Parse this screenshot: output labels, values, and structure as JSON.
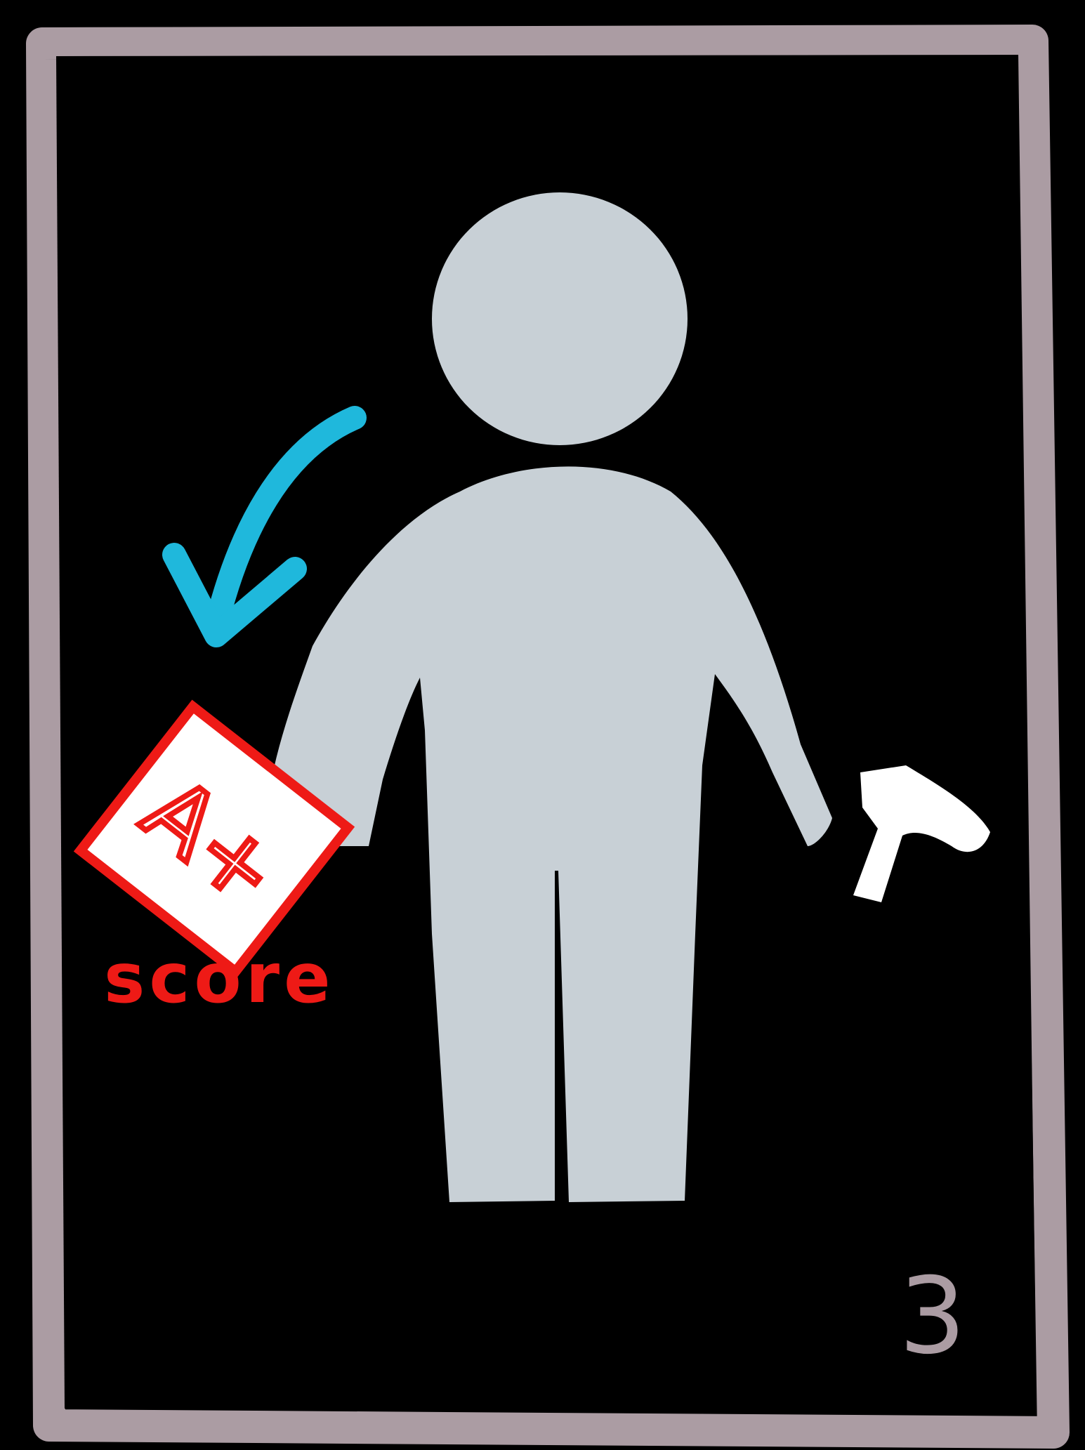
{
  "card": {
    "score_card_text": "A+",
    "score_label": "score",
    "number": "3"
  },
  "colors": {
    "background": "#000000",
    "frame": "#ab9ca3",
    "figure": "#c8d0d6",
    "arrow": "#1fb8dc",
    "score": "#ee1a16",
    "paper": "#ffffff",
    "tool": "#ffffff"
  },
  "icons": {
    "arrow": "curved-arrow-down-left-icon",
    "figure": "person-silhouette-icon",
    "score_card": "graded-paper-icon",
    "tool": "hammer-icon"
  }
}
